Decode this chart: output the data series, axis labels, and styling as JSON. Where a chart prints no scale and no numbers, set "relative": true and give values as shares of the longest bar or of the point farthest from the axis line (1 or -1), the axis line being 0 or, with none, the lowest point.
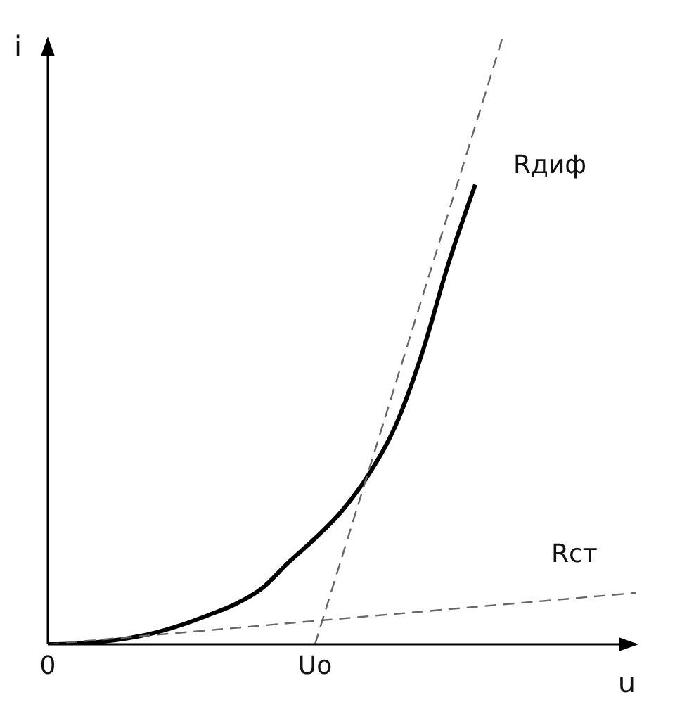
{
  "chart_data": {
    "type": "line",
    "relative": true,
    "xlabel": "u",
    "ylabel": "i",
    "categories": [
      "0",
      null,
      null,
      null,
      null,
      null,
      null,
      null,
      null,
      null,
      "Uo",
      null,
      null,
      null,
      null,
      null,
      null,
      null,
      null,
      null,
      null,
      null,
      null
    ],
    "tick_labels": "x",
    "grid": false,
    "legend": false,
    "marker": "none",
    "series": [
      {
        "color": "#000000",
        "line_style": "solid",
        "values": [
          0,
          0.001,
          0.004,
          0.01,
          0.019,
          0.032,
          0.048,
          0.066,
          0.092,
          0.135,
          0.175,
          0.22,
          0.28,
          0.36,
          0.48,
          0.63,
          0.76,
          null,
          null,
          null,
          null,
          null,
          null
        ]
      },
      {
        "name": "Rдиф",
        "color": "#666666",
        "line_style": "dashed",
        "values": [
          null,
          null,
          null,
          null,
          null,
          null,
          null,
          null,
          null,
          null,
          0,
          null,
          null,
          null,
          null,
          null,
          null,
          1,
          null,
          null,
          null,
          null,
          null
        ]
      },
      {
        "name": "Rст",
        "color": "#666666",
        "line_style": "dashed",
        "values": [
          0,
          null,
          null,
          null,
          null,
          null,
          null,
          null,
          null,
          null,
          null,
          null,
          null,
          null,
          null,
          null,
          null,
          null,
          null,
          null,
          null,
          null,
          0.085
        ]
      }
    ]
  }
}
